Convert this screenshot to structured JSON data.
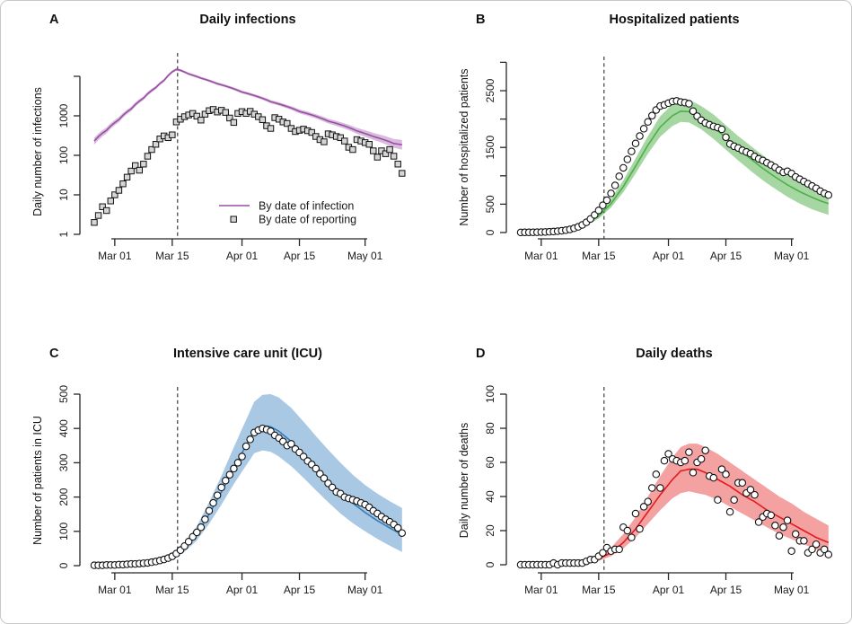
{
  "figure": {
    "background": "#ffffff",
    "border_color": "#c9c9c9",
    "dashed_line_meaning": "intervention date (dashed vertical line at Mar 16)",
    "dashed_line_color": "#3c3c3c"
  },
  "chart_data": {
    "type": "line",
    "layout": "2x2 panels, model fit line with confidence band and observed points",
    "x": {
      "day_index_start_date": "Feb 25",
      "day_index_end_date": "May 10",
      "days_total": 76,
      "tick_labels": [
        "Mar 01",
        "Mar 15",
        "Apr 01",
        "Apr 15",
        "May 01"
      ],
      "tick_day_index": [
        5,
        19,
        36,
        50,
        66
      ],
      "intervention_day_index": 20.3
    },
    "panels": [
      {
        "id": "A",
        "letter": "A",
        "title": "Daily infections",
        "ylabel": "Daily number of infections",
        "scale": "log10",
        "ylim": [
          1,
          10000
        ],
        "yticks": [
          1,
          10,
          100,
          1000,
          10000
        ],
        "ytick_labels": [
          "1",
          "10",
          "100",
          "1000",
          ""
        ],
        "line_color": "#984ea3",
        "band_color": "#d9bcdd",
        "point_shape": "square",
        "point_fill": "#d6d6d6",
        "legend": {
          "line_label": "By date of infection",
          "point_label": "By date of reporting"
        },
        "model": {
          "day": [
            0,
            3,
            6,
            9,
            12,
            15,
            17,
            19,
            20,
            21,
            23,
            26,
            30,
            36,
            43,
            50,
            57,
            64,
            68,
            73,
            75
          ],
          "mean": [
            230,
            430,
            800,
            1500,
            2800,
            5200,
            7900,
            13000,
            15000,
            14200,
            11500,
            9000,
            6500,
            4000,
            2280,
            1290,
            735,
            415,
            300,
            200,
            185
          ],
          "lower": [
            185,
            360,
            690,
            1320,
            2500,
            4700,
            7200,
            12000,
            13900,
            13200,
            10700,
            8350,
            6000,
            3680,
            2070,
            1150,
            640,
            350,
            245,
            155,
            140
          ],
          "upper": [
            280,
            510,
            930,
            1700,
            3130,
            5750,
            8650,
            14100,
            16100,
            15300,
            12400,
            9700,
            7050,
            4350,
            2510,
            1450,
            845,
            495,
            370,
            260,
            245
          ]
        },
        "observed": [
          2,
          3,
          5,
          4,
          7,
          10,
          13,
          19,
          28,
          40,
          55,
          42,
          60,
          95,
          140,
          190,
          260,
          310,
          280,
          330,
          700,
          820,
          950,
          1050,
          1150,
          980,
          780,
          1100,
          1350,
          1450,
          1250,
          1380,
          1220,
          880,
          680,
          1150,
          1280,
          1150,
          1300,
          1100,
          950,
          800,
          560,
          480,
          900,
          820,
          700,
          640,
          480,
          400,
          430,
          460,
          420,
          380,
          300,
          250,
          220,
          350,
          330,
          300,
          280,
          230,
          160,
          140,
          250,
          230,
          210,
          190,
          130,
          90,
          130,
          110,
          140,
          95,
          60,
          35
        ]
      },
      {
        "id": "B",
        "letter": "B",
        "title": "Hospitalized patients",
        "ylabel": "Number of hospitalized patients",
        "scale": "linear",
        "ylim": [
          0,
          3000
        ],
        "yticks": [
          0,
          500,
          1000,
          1500,
          2000,
          2500,
          3000
        ],
        "ytick_labels": [
          "0",
          "500",
          "",
          "1500",
          "",
          "2500",
          ""
        ],
        "line_color": "#4daf4a",
        "band_color": "#a6d7a3",
        "point_shape": "circle",
        "point_fill": "#ffffff",
        "legend": null,
        "model": {
          "day": [
            0,
            5,
            10,
            15,
            19,
            22,
            25,
            28,
            31,
            34,
            37,
            39,
            41,
            44,
            47,
            50,
            53,
            56,
            59,
            62,
            65,
            68,
            71,
            73,
            75
          ],
          "mean": [
            6,
            16,
            42,
            115,
            290,
            510,
            810,
            1170,
            1540,
            1860,
            2060,
            2140,
            2130,
            2020,
            1860,
            1670,
            1480,
            1300,
            1130,
            980,
            840,
            720,
            620,
            560,
            510
          ],
          "lower": [
            3,
            10,
            30,
            90,
            245,
            440,
            710,
            1040,
            1390,
            1690,
            1880,
            1950,
            1940,
            1820,
            1650,
            1460,
            1270,
            1090,
            920,
            770,
            630,
            510,
            410,
            360,
            310
          ],
          "upper": [
            10,
            24,
            58,
            145,
            340,
            590,
            920,
            1310,
            1700,
            2050,
            2260,
            2350,
            2340,
            2230,
            2080,
            1890,
            1700,
            1530,
            1360,
            1200,
            1060,
            940,
            840,
            780,
            730
          ]
        },
        "observed": [
          2,
          3,
          3,
          4,
          5,
          8,
          10,
          13,
          18,
          24,
          32,
          42,
          55,
          75,
          100,
          135,
          180,
          240,
          310,
          390,
          480,
          570,
          690,
          830,
          990,
          1140,
          1290,
          1430,
          1570,
          1700,
          1830,
          1950,
          2060,
          2160,
          2230,
          2250,
          2280,
          2310,
          2320,
          2300,
          2290,
          2270,
          2140,
          2050,
          1980,
          1930,
          1900,
          1870,
          1850,
          1820,
          1680,
          1560,
          1520,
          1490,
          1450,
          1420,
          1390,
          1340,
          1300,
          1270,
          1230,
          1190,
          1150,
          1100,
          1060,
          1080,
          1040,
          980,
          940,
          900,
          860,
          820,
          780,
          730,
          690,
          660
        ]
      },
      {
        "id": "C",
        "letter": "C",
        "title": "Intensive care unit (ICU)",
        "ylabel": "Number of patients in ICU",
        "scale": "linear",
        "ylim": [
          0,
          500
        ],
        "yticks": [
          0,
          100,
          200,
          300,
          400,
          500
        ],
        "ytick_labels": [
          "0",
          "100",
          "200",
          "300",
          "400",
          "500"
        ],
        "line_color": "#377eb8",
        "band_color": "#a9c8e4",
        "point_shape": "circle",
        "point_fill": "#ffffff",
        "legend": null,
        "model": {
          "day": [
            0,
            5,
            10,
            15,
            19,
            22,
            25,
            28,
            31,
            34,
            37,
            39,
            41,
            43,
            45,
            48,
            51,
            54,
            57,
            60,
            63,
            66,
            69,
            72,
            75
          ],
          "mean": [
            1,
            2,
            5,
            13,
            28,
            52,
            92,
            150,
            215,
            285,
            350,
            395,
            408,
            405,
            392,
            362,
            325,
            286,
            248,
            213,
            182,
            155,
            131,
            110,
            90
          ],
          "lower": [
            0.5,
            1,
            3,
            9,
            21,
            40,
            74,
            122,
            178,
            238,
            292,
            328,
            336,
            332,
            318,
            290,
            256,
            220,
            185,
            152,
            124,
            100,
            78,
            58,
            40
          ],
          "upper": [
            2,
            4,
            8,
            19,
            38,
            68,
            115,
            185,
            262,
            345,
            425,
            478,
            498,
            500,
            490,
            460,
            420,
            378,
            338,
            300,
            265,
            235,
            210,
            188,
            168
          ]
        },
        "observed": [
          1,
          1,
          1,
          2,
          2,
          2,
          3,
          3,
          4,
          5,
          5,
          6,
          7,
          8,
          10,
          12,
          15,
          18,
          22,
          27,
          35,
          45,
          57,
          70,
          84,
          97,
          112,
          135,
          160,
          183,
          205,
          228,
          248,
          265,
          283,
          300,
          318,
          348,
          368,
          388,
          395,
          400,
          397,
          392,
          380,
          372,
          362,
          350,
          355,
          340,
          330,
          318,
          305,
          295,
          283,
          268,
          255,
          240,
          228,
          215,
          210,
          200,
          196,
          192,
          188,
          183,
          178,
          170,
          160,
          152,
          143,
          135,
          128,
          120,
          110,
          95
        ]
      },
      {
        "id": "D",
        "letter": "D",
        "title": "Daily deaths",
        "ylabel": "Daily number of deaths",
        "scale": "linear",
        "ylim": [
          0,
          100
        ],
        "yticks": [
          0,
          20,
          40,
          60,
          80,
          100
        ],
        "ytick_labels": [
          "0",
          "20",
          "40",
          "60",
          "80",
          "100"
        ],
        "line_color": "#e41a1c",
        "band_color": "#f4a1a2",
        "point_shape": "circle",
        "point_fill": "#ffffff",
        "legend": null,
        "model": {
          "day": [
            0,
            10,
            15,
            19,
            22,
            25,
            28,
            31,
            34,
            37,
            39,
            41,
            43,
            45,
            48,
            51,
            54,
            57,
            60,
            63,
            66,
            69,
            72,
            75
          ],
          "mean": [
            0.2,
            0.6,
            1.5,
            3.5,
            7,
            13,
            21,
            31,
            41,
            50,
            55,
            56,
            56,
            54,
            50,
            46,
            41,
            37,
            32,
            28,
            24,
            20,
            16,
            13
          ],
          "lower": [
            0.1,
            0.3,
            0.9,
            2.3,
            5,
            9.5,
            16,
            24,
            32,
            39,
            42,
            43,
            42,
            41,
            38,
            34,
            30,
            26,
            22,
            18,
            15,
            12,
            9,
            6
          ],
          "upper": [
            0.5,
            1.2,
            2.5,
            5.5,
            10,
            18,
            28,
            40,
            52,
            63,
            69,
            71,
            71,
            69,
            65,
            60,
            55,
            50,
            45,
            40,
            36,
            31,
            27,
            23
          ]
        },
        "observed": [
          0,
          0,
          0,
          0,
          0,
          0,
          0,
          0,
          1,
          0,
          1,
          1,
          1,
          1,
          1,
          1,
          2,
          3,
          3,
          5,
          7,
          10,
          8,
          9,
          9,
          22,
          20,
          16,
          30,
          21,
          34,
          37,
          45,
          53,
          45,
          61,
          65,
          62,
          61,
          60,
          61,
          66,
          54,
          60,
          62,
          67,
          52,
          51,
          38,
          56,
          53,
          31,
          38,
          48,
          48,
          42,
          44,
          41,
          25,
          28,
          30,
          29,
          23,
          17,
          22,
          26,
          8,
          18,
          14,
          14,
          7,
          9,
          12,
          7,
          9,
          6
        ]
      }
    ]
  }
}
